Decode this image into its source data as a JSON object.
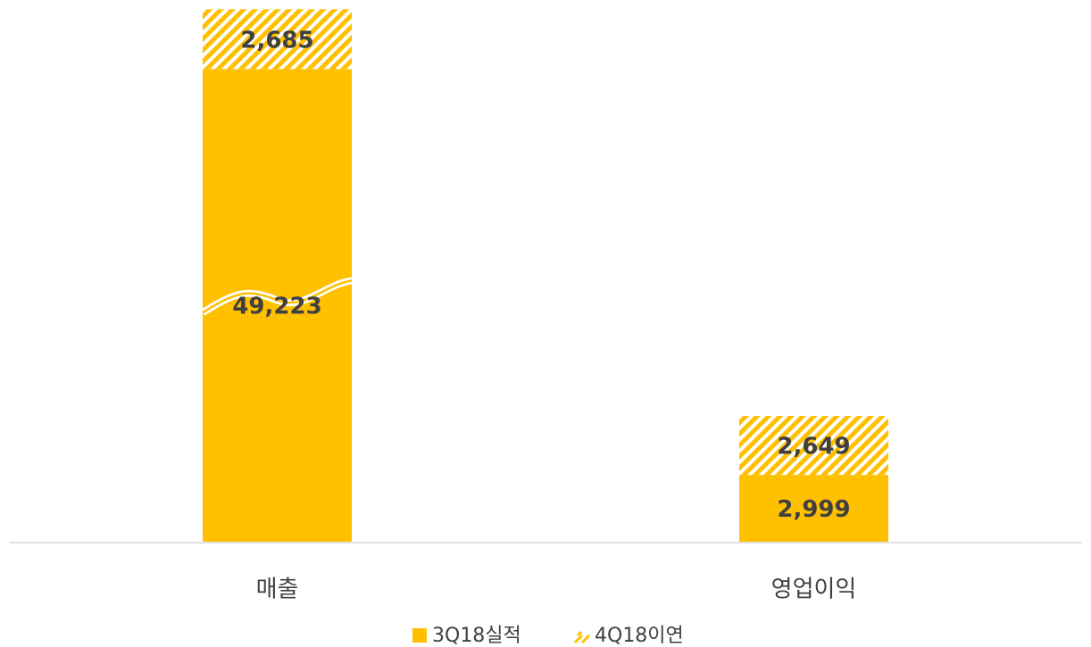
{
  "chart_data": {
    "type": "bar",
    "stacked": true,
    "categories": [
      "매출",
      "영업이익"
    ],
    "series": [
      {
        "name": "3Q18실적",
        "color": "#FFC000",
        "values": [
          49223,
          2999
        ],
        "value_labels": [
          "49,223",
          "2,999"
        ]
      },
      {
        "name": "4Q18이연",
        "color": "#FFC000",
        "pattern": "hatch",
        "values": [
          2685,
          2649
        ],
        "value_labels": [
          "2,685",
          "2,649"
        ]
      }
    ],
    "ylim": [
      0,
      52000
    ],
    "axis_break": [
      11000,
      39000
    ],
    "legend": "bottom"
  }
}
